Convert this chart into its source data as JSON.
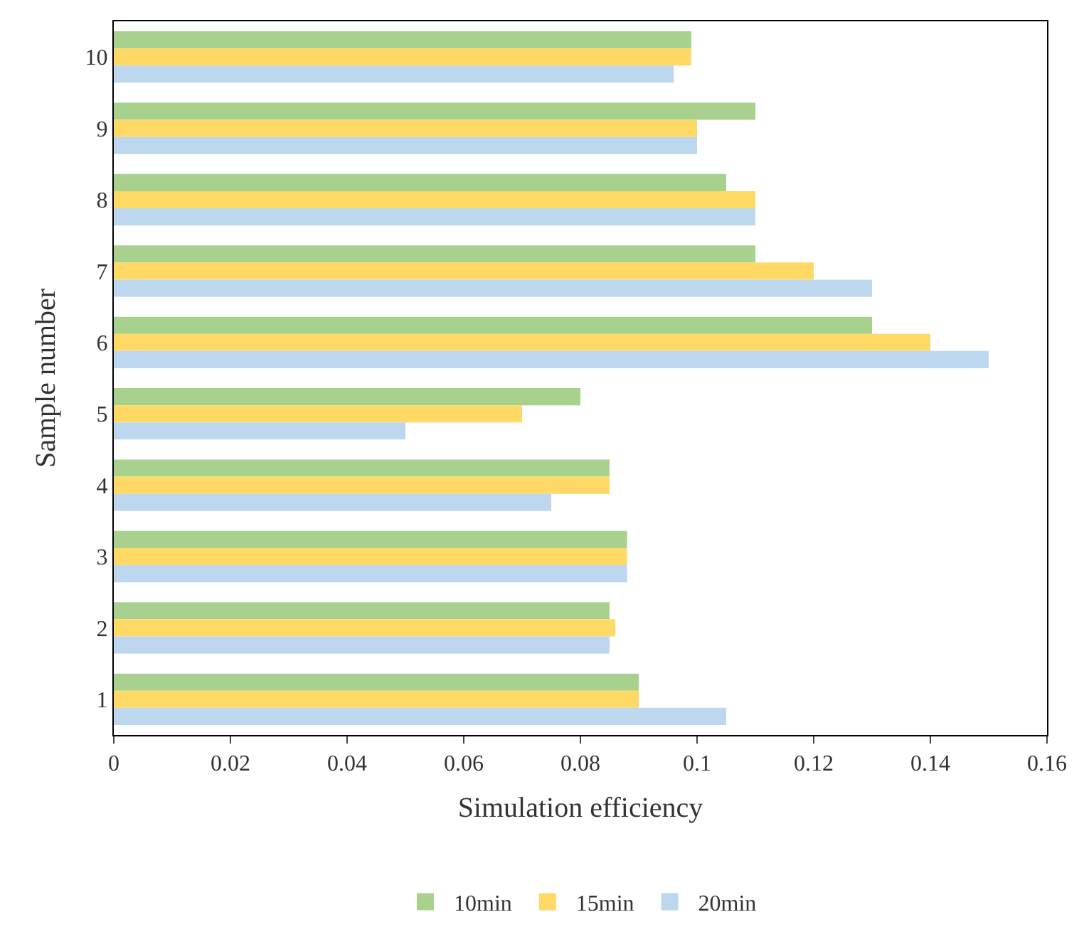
{
  "chart_data": {
    "type": "bar",
    "orientation": "horizontal",
    "xlabel": "Simulation efficiency",
    "ylabel": "Sample number",
    "categories": [
      "10",
      "9",
      "8",
      "7",
      "6",
      "5",
      "4",
      "3",
      "2",
      "1"
    ],
    "series": [
      {
        "name": "10min",
        "color": "#a9d18e",
        "values": [
          0.099,
          0.11,
          0.105,
          0.11,
          0.13,
          0.08,
          0.085,
          0.088,
          0.085,
          0.09
        ]
      },
      {
        "name": "15min",
        "color": "#ffd966",
        "values": [
          0.099,
          0.1,
          0.11,
          0.12,
          0.14,
          0.07,
          0.085,
          0.088,
          0.086,
          0.09
        ]
      },
      {
        "name": "20min",
        "color": "#bdd7ee",
        "values": [
          0.096,
          0.1,
          0.11,
          0.13,
          0.15,
          0.05,
          0.075,
          0.088,
          0.085,
          0.105
        ]
      }
    ],
    "xlim": [
      0,
      0.16
    ],
    "xticks": [
      0,
      0.02,
      0.04,
      0.06,
      0.08,
      0.1,
      0.12,
      0.14,
      0.16
    ],
    "legend": "bottom"
  }
}
